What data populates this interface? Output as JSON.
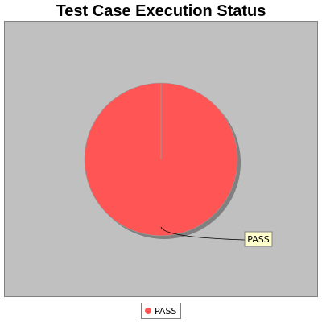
{
  "chart_data": {
    "type": "pie",
    "title": "Test Case Execution Status",
    "slices": [
      {
        "label": "PASS",
        "value": 100,
        "color": "#ff5555"
      }
    ],
    "legend": {
      "position": "bottom-center",
      "entries": [
        "PASS"
      ]
    },
    "background_color": "#c0c0c0",
    "label_box_color": "#ffffcc"
  }
}
